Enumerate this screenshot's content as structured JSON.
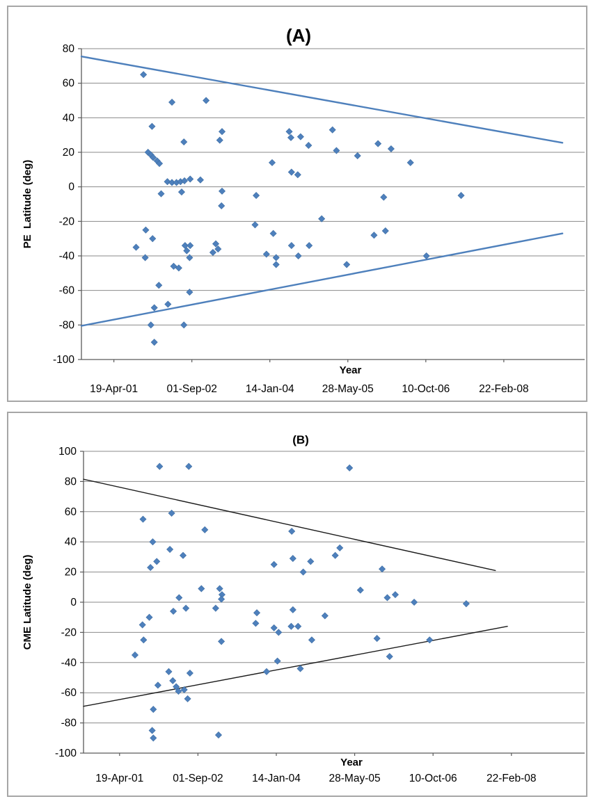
{
  "figure": {
    "background": "#ffffff",
    "panel_border_color": "#a6a6a6",
    "gridline_color": "#8a8a8a",
    "axis_color": "#5a5a5a"
  },
  "chart_data": [
    {
      "type": "scatter",
      "panel_label": "(A)",
      "ylabel": "PE  Latitude (deg)",
      "xlabel": "Year",
      "ylim": [
        -100,
        80
      ],
      "yticks": [
        80,
        60,
        40,
        20,
        0,
        -20,
        -40,
        -60,
        -80,
        -100
      ],
      "x_domain": [
        2000.73,
        2009.57
      ],
      "xticks": [
        {
          "year": 2001.3,
          "label": "19-Apr-01"
        },
        {
          "year": 2002.67,
          "label": "01-Sep-02"
        },
        {
          "year": 2004.04,
          "label": "14-Jan-04"
        },
        {
          "year": 2005.41,
          "label": "28-May-05"
        },
        {
          "year": 2006.78,
          "label": "10-Oct-06"
        },
        {
          "year": 2008.15,
          "label": "22-Feb-08"
        }
      ],
      "grid": true,
      "legend": false,
      "marker": "diamond",
      "marker_color": "#4e80bc",
      "marker_edge_color": "#3d6da3",
      "trend_color": "#4e80bc",
      "trend_width": 2.4,
      "trendlines": [
        {
          "name": "upper-envelope",
          "x1": 2000.73,
          "y1": 75.5,
          "x2": 2009.18,
          "y2": 25.5
        },
        {
          "name": "lower-envelope",
          "x1": 2000.73,
          "y1": -80.5,
          "x2": 2009.18,
          "y2": -27
        }
      ],
      "points": [
        [
          2001.82,
          65
        ],
        [
          2002.32,
          49
        ],
        [
          2002.92,
          50
        ],
        [
          2001.97,
          35
        ],
        [
          2002.53,
          26
        ],
        [
          2003.2,
          32
        ],
        [
          2003.16,
          27
        ],
        [
          2001.9,
          20
        ],
        [
          2001.95,
          18.5
        ],
        [
          2001.99,
          17
        ],
        [
          2002.06,
          15
        ],
        [
          2002.1,
          13.5
        ],
        [
          2002.24,
          3
        ],
        [
          2002.32,
          2.5
        ],
        [
          2002.4,
          2.5
        ],
        [
          2002.47,
          3
        ],
        [
          2002.54,
          3.5
        ],
        [
          2002.64,
          4.5
        ],
        [
          2002.82,
          4
        ],
        [
          2002.13,
          -4
        ],
        [
          2002.49,
          -3
        ],
        [
          2003.2,
          -2.5
        ],
        [
          2003.8,
          -5
        ],
        [
          2003.19,
          -11
        ],
        [
          2004.08,
          14
        ],
        [
          2004.42,
          8.5
        ],
        [
          2004.53,
          7
        ],
        [
          2004.38,
          32
        ],
        [
          2004.41,
          28.5
        ],
        [
          2004.58,
          29
        ],
        [
          2004.72,
          24
        ],
        [
          2005.14,
          33
        ],
        [
          2005.21,
          21
        ],
        [
          2005.58,
          18
        ],
        [
          2005.94,
          25
        ],
        [
          2006.17,
          22
        ],
        [
          2006.51,
          14
        ],
        [
          2006.04,
          -6
        ],
        [
          2007.4,
          -5
        ],
        [
          2004.95,
          -18.5
        ],
        [
          2003.78,
          -22
        ],
        [
          2001.86,
          -25
        ],
        [
          2001.98,
          -30
        ],
        [
          2001.69,
          -35
        ],
        [
          2001.85,
          -41
        ],
        [
          2004.1,
          -27
        ],
        [
          2005.87,
          -28
        ],
        [
          2006.07,
          -25.5
        ],
        [
          2002.55,
          -34
        ],
        [
          2002.64,
          -34
        ],
        [
          2002.58,
          -37
        ],
        [
          2002.63,
          -41
        ],
        [
          2002.35,
          -46
        ],
        [
          2002.44,
          -47
        ],
        [
          2003.09,
          -33
        ],
        [
          2003.13,
          -36
        ],
        [
          2003.04,
          -38
        ],
        [
          2003.98,
          -39
        ],
        [
          2004.15,
          -41
        ],
        [
          2004.15,
          -45
        ],
        [
          2004.42,
          -34
        ],
        [
          2004.54,
          -40
        ],
        [
          2004.73,
          -34
        ],
        [
          2005.39,
          -45
        ],
        [
          2006.79,
          -40
        ],
        [
          2002.09,
          -57
        ],
        [
          2002.63,
          -61
        ],
        [
          2002.01,
          -70
        ],
        [
          2002.25,
          -68
        ],
        [
          2001.95,
          -80
        ],
        [
          2002.53,
          -80
        ],
        [
          2002.01,
          -90
        ]
      ]
    },
    {
      "type": "scatter",
      "panel_label": "(B)",
      "ylabel": "CME Latitude (deg)",
      "xlabel": "Year",
      "ylim": [
        -100,
        100
      ],
      "yticks": [
        100,
        80,
        60,
        40,
        20,
        0,
        -20,
        -40,
        -60,
        -80,
        -100
      ],
      "x_domain": [
        2000.67,
        2009.43
      ],
      "xticks": [
        {
          "year": 2001.3,
          "label": "19-Apr-01"
        },
        {
          "year": 2002.67,
          "label": "01-Sep-02"
        },
        {
          "year": 2004.04,
          "label": "14-Jan-04"
        },
        {
          "year": 2005.41,
          "label": "28-May-05"
        },
        {
          "year": 2006.78,
          "label": "10-Oct-06"
        },
        {
          "year": 2008.15,
          "label": "22-Feb-08"
        }
      ],
      "grid": true,
      "legend": false,
      "marker": "diamond",
      "marker_color": "#4e80bc",
      "marker_edge_color": "#3d6da3",
      "trend_color": "#1a1a1a",
      "trend_width": 1.4,
      "trendlines": [
        {
          "name": "upper-envelope",
          "x1": 2000.67,
          "y1": 81.5,
          "x2": 2007.87,
          "y2": 21
        },
        {
          "name": "lower-envelope",
          "x1": 2000.67,
          "y1": -69,
          "x2": 2008.08,
          "y2": -16
        }
      ],
      "points": [
        [
          2002.0,
          90
        ],
        [
          2002.51,
          90
        ],
        [
          2005.32,
          89
        ],
        [
          2001.71,
          55
        ],
        [
          2002.21,
          59
        ],
        [
          2002.79,
          48
        ],
        [
          2004.31,
          47
        ],
        [
          2001.88,
          40
        ],
        [
          2002.18,
          35
        ],
        [
          2002.41,
          31
        ],
        [
          2001.84,
          23
        ],
        [
          2001.95,
          27
        ],
        [
          2004.0,
          25
        ],
        [
          2005.15,
          36
        ],
        [
          2005.07,
          31
        ],
        [
          2004.33,
          29
        ],
        [
          2004.64,
          27
        ],
        [
          2004.51,
          20
        ],
        [
          2005.89,
          22
        ],
        [
          2002.73,
          9
        ],
        [
          2002.34,
          3
        ],
        [
          2003.05,
          9
        ],
        [
          2003.09,
          5
        ],
        [
          2003.08,
          2
        ],
        [
          2005.51,
          8
        ],
        [
          2005.98,
          3
        ],
        [
          2006.12,
          5
        ],
        [
          2006.45,
          0
        ],
        [
          2007.36,
          -1
        ],
        [
          2002.24,
          -6
        ],
        [
          2002.46,
          -4
        ],
        [
          2002.98,
          -4
        ],
        [
          2001.82,
          -10
        ],
        [
          2001.7,
          -15
        ],
        [
          2001.72,
          -25
        ],
        [
          2001.57,
          -35
        ],
        [
          2003.7,
          -7
        ],
        [
          2003.68,
          -14
        ],
        [
          2004.33,
          -5
        ],
        [
          2004.89,
          -9
        ],
        [
          2004.0,
          -17
        ],
        [
          2004.08,
          -20
        ],
        [
          2004.3,
          -16
        ],
        [
          2004.42,
          -16
        ],
        [
          2004.66,
          -25
        ],
        [
          2003.08,
          -26
        ],
        [
          2005.8,
          -24
        ],
        [
          2006.02,
          -36
        ],
        [
          2006.72,
          -25
        ],
        [
          2004.06,
          -39
        ],
        [
          2004.46,
          -44
        ],
        [
          2003.87,
          -46
        ],
        [
          2002.16,
          -46
        ],
        [
          2002.53,
          -47
        ],
        [
          2002.23,
          -52
        ],
        [
          2001.97,
          -55
        ],
        [
          2002.29,
          -56
        ],
        [
          2002.33,
          -59
        ],
        [
          2002.43,
          -58
        ],
        [
          2002.49,
          -64
        ],
        [
          2001.89,
          -71
        ],
        [
          2001.87,
          -85
        ],
        [
          2001.89,
          -90
        ],
        [
          2003.03,
          -88
        ]
      ]
    }
  ]
}
